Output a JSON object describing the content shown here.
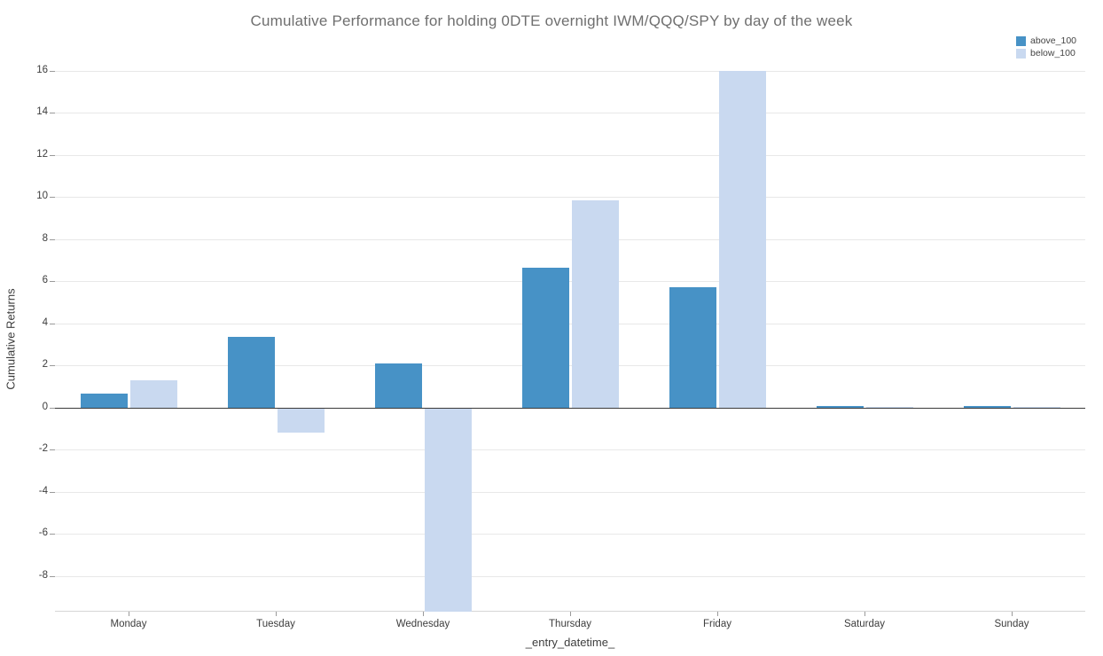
{
  "chart_data": {
    "type": "bar",
    "title": "Cumulative Performance for holding 0DTE overnight IWM/QQQ/SPY by day of the week",
    "xlabel": "_entry_datetime_",
    "ylabel": "Cumulative Returns",
    "categories": [
      "Monday",
      "Tuesday",
      "Wednesday",
      "Thursday",
      "Friday",
      "Saturday",
      "Sunday"
    ],
    "series": [
      {
        "name": "above_100",
        "color": "#4792c6",
        "values": [
          0.65,
          3.35,
          2.1,
          6.65,
          5.7,
          0.06,
          0.07
        ]
      },
      {
        "name": "below_100",
        "color": "#c9d9f0",
        "values": [
          1.3,
          -1.2,
          -9.9,
          9.85,
          16.0,
          0.03,
          0.03
        ]
      }
    ],
    "yticks": [
      16,
      14,
      12,
      10,
      8,
      6,
      4,
      2,
      0,
      -2,
      -4,
      -6,
      -8
    ],
    "ylim": [
      -9.7,
      16
    ],
    "grid": true,
    "legend_position": "top-right",
    "colors": {
      "above_100": "#4792c6",
      "below_100": "#c9d9f0",
      "grid": "#e8e8e8",
      "zero_line": "#3a3a3a"
    }
  }
}
